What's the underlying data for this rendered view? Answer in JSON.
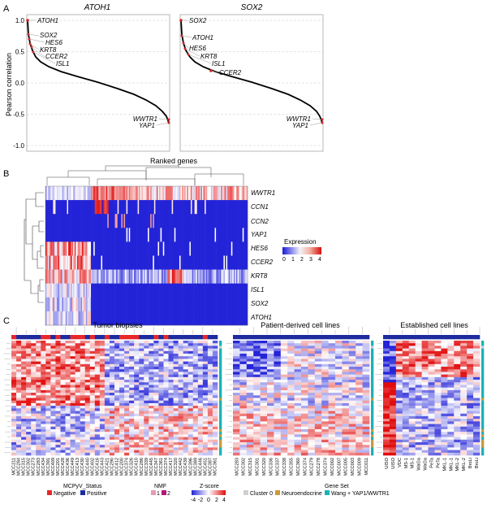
{
  "panel_letters": [
    "A",
    "B",
    "C"
  ],
  "panelA": {
    "titles": [
      "ATOH1",
      "SOX2"
    ],
    "ylabel": "Pearson correlation",
    "xlabel": "Ranked genes",
    "yticks": [
      "1.0",
      "0.5",
      "0.0",
      "-0.5",
      "-1.0"
    ]
  },
  "panelB": {
    "legend_title": "Expression",
    "legend_ticks": [
      "0",
      "1",
      "2",
      "3",
      "4"
    ]
  },
  "panelC": {
    "titles": [
      "Tumor biopsies",
      "Patient-derived cell lines",
      "Established cell lines"
    ],
    "legends": {
      "mcpyv": {
        "title": "MCPyV_Status",
        "items": [
          "Negative",
          "Positive"
        ]
      },
      "nmf": {
        "title": "NMF",
        "items": [
          "1",
          "2"
        ]
      },
      "zscore": {
        "title": "Z-score",
        "ticks": [
          "-4",
          "-2",
          "0",
          "2",
          "4"
        ]
      },
      "geneset": {
        "title": "Gene Set",
        "items": [
          "Cluster 0",
          "Neuroendocrine",
          "Wang + YAP1/WWTR1"
        ]
      }
    },
    "tumor_samples": [
      "MCC211",
      "MCC284",
      "MCC315",
      "MCC302",
      "MCC273",
      "MCC283",
      "MCC434",
      "MCC391",
      "MCC409",
      "MCC201",
      "MCC428",
      "MCC436",
      "MCC449",
      "MCC413",
      "MCC430",
      "MCC440",
      "MCC402",
      "MCC416",
      "MCC443",
      "MCC421",
      "MCC290",
      "MCC412",
      "MCC200",
      "MCC374",
      "MCC326",
      "MCC410",
      "MCC286",
      "MCC339",
      "MCC445",
      "MCC347",
      "MCC361",
      "MCC374",
      "MCC417",
      "MCC320",
      "MCC442",
      "MCC439",
      "MCC396",
      "MCC389",
      "MCC446",
      "MCC451",
      "MCC387",
      "MCC361"
    ],
    "pdcl_samples": [
      "MCC283",
      "MCC302",
      "MCC315",
      "MCC301",
      "MCC320",
      "MCC336",
      "MCC337",
      "MCC338",
      "MCC355",
      "MCC360",
      "MCC374",
      "MCC279",
      "MCC278",
      "MCC374",
      "MCC002",
      "MCC007",
      "MCC005",
      "MCC003",
      "MCC009",
      "MCC011"
    ],
    "est_samples": [
      "UISO",
      "UISO",
      "VDC",
      "MS-1",
      "MS-1",
      "WaGa",
      "WaGa",
      "PeTa",
      "PeTa",
      "MKL-1",
      "MKL-1",
      "MKL-2",
      "MKL-2",
      "BroLi",
      "BroLi"
    ],
    "colors": {
      "negative": "#e8272a",
      "positive": "#1d2b9e",
      "nmf1": "#e899b8",
      "nmf2": "#b2157a",
      "cluster0": "#cfcfcf",
      "neuroendocrine": "#c99a3a",
      "wang": "#1ab2b6",
      "low": "#2323d8",
      "high": "#e10d0d"
    }
  }
}
